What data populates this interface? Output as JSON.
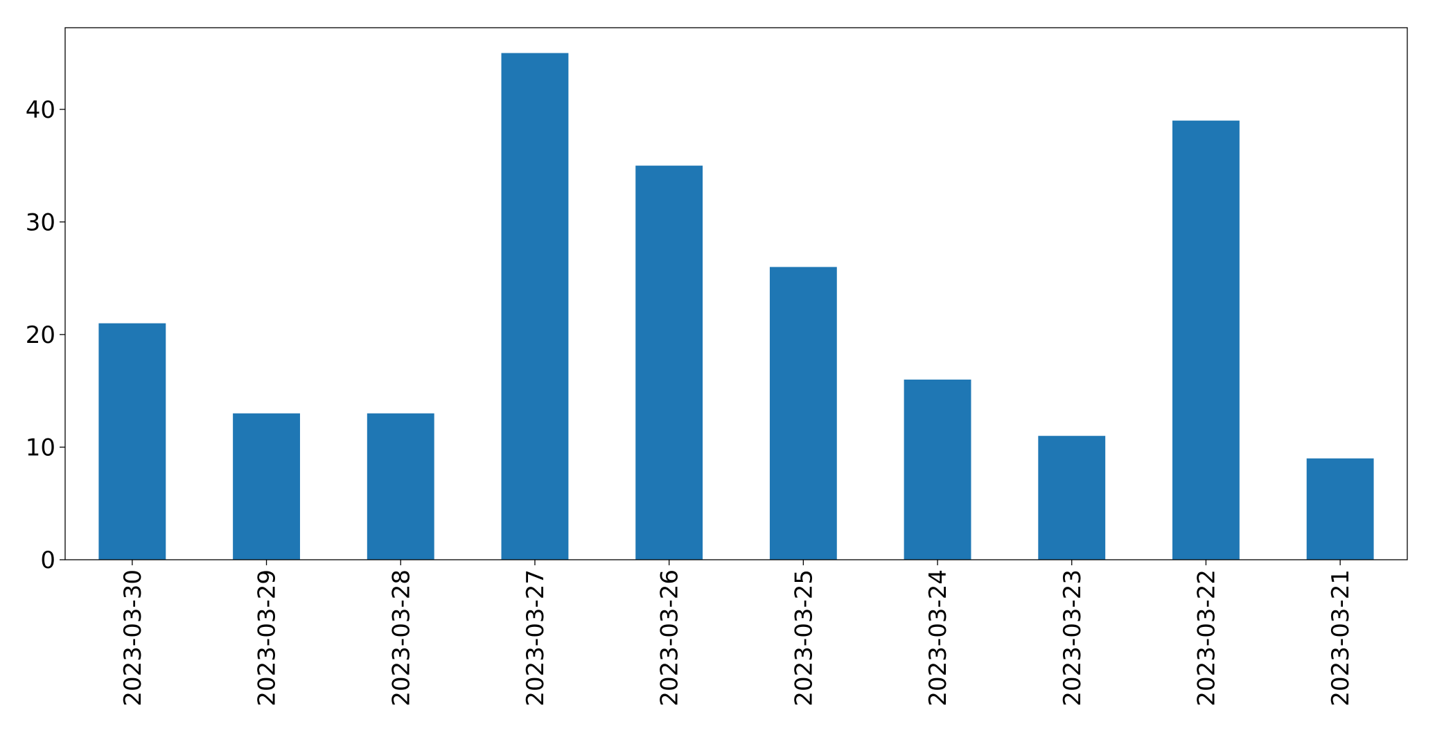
{
  "chart_data": {
    "type": "bar",
    "categories": [
      "2023-03-30",
      "2023-03-29",
      "2023-03-28",
      "2023-03-27",
      "2023-03-26",
      "2023-03-25",
      "2023-03-24",
      "2023-03-23",
      "2023-03-22",
      "2023-03-21"
    ],
    "values": [
      21,
      13,
      13,
      45,
      35,
      26,
      16,
      11,
      39,
      9
    ],
    "color": "#1f77b4",
    "ylim": [
      0,
      47.25
    ],
    "yticks": [
      0,
      10,
      20,
      30,
      40
    ],
    "grid": false
  }
}
